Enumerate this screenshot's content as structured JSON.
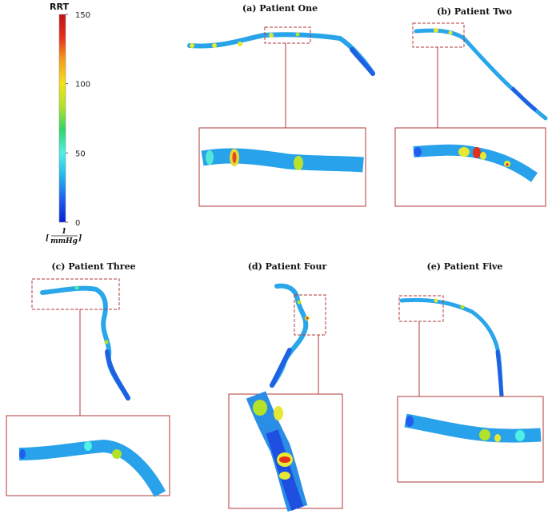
{
  "colorbar": {
    "title": "RRT",
    "ticks": [
      0,
      50,
      100,
      150
    ],
    "range": [
      0,
      150
    ],
    "unit_numerator": "1",
    "unit_denominator": "mmHg",
    "colors": [
      "#0b1fd6",
      "#1e5ff0",
      "#22b6ee",
      "#4ff0e6",
      "#2fd66a",
      "#b4e12a",
      "#f2e21a",
      "#f4a01a",
      "#e6301a",
      "#c4101a"
    ]
  },
  "panels": [
    {
      "id": "a",
      "title": "(a) Patient One"
    },
    {
      "id": "b",
      "title": "(b) Patient Two"
    },
    {
      "id": "c",
      "title": "(c) Patient Three"
    },
    {
      "id": "d",
      "title": "(d) Patient Four"
    },
    {
      "id": "e",
      "title": "(e) Patient Five"
    }
  ],
  "colors": {
    "zoom_box": "#b33a3a",
    "vessel_base": "#2aa6ea",
    "vessel_low": "#1e62e4",
    "hot_yellow": "#e6e832",
    "hot_red": "#e2301c"
  }
}
